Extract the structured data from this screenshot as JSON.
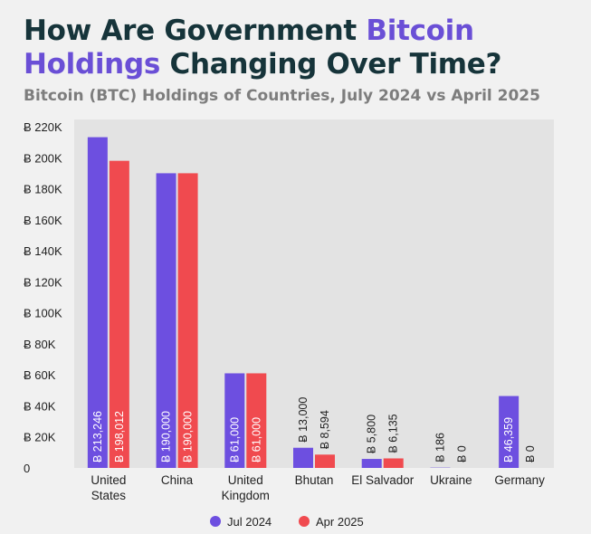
{
  "title": {
    "part1": "How Are Government ",
    "accent1": "Bitcoin",
    "accent2": "Holdings",
    "part2": " Changing Over Time?"
  },
  "subtitle": "Bitcoin (BTC) Holdings of Countries, July 2024 vs April 2025",
  "colors": {
    "jul_2024": "#6d4fe0",
    "apr_2025": "#f04a4f",
    "title": "#16343a",
    "accent": "#6a4fd6",
    "background": "#f1f1f1",
    "plot_area": "#e3e3e3"
  },
  "chart_data": {
    "type": "bar",
    "title": "How Are Government Bitcoin Holdings Changing Over Time?",
    "subtitle": "Bitcoin (BTC) Holdings of Countries, July 2024 vs April 2025",
    "categories": [
      [
        "United",
        "States"
      ],
      [
        "China"
      ],
      [
        "United",
        "Kingdom"
      ],
      [
        "Bhutan"
      ],
      [
        "El Salvador"
      ],
      [
        "Ukraine"
      ],
      [
        "Germany"
      ]
    ],
    "series": [
      {
        "name": "Jul 2024",
        "values": [
          213246,
          190000,
          61000,
          13000,
          5800,
          186,
          46359
        ],
        "labels": [
          "Ƀ 213,246",
          "Ƀ 190,000",
          "Ƀ 61,000",
          "Ƀ 13,000",
          "Ƀ 5,800",
          "Ƀ 186",
          "Ƀ 46,359"
        ]
      },
      {
        "name": "Apr 2025",
        "values": [
          198012,
          190000,
          61000,
          8594,
          6135,
          0,
          0
        ],
        "labels": [
          "Ƀ 198,012",
          "Ƀ 190,000",
          "Ƀ 61,000",
          "Ƀ 8,594",
          "Ƀ 6,135",
          "Ƀ 0",
          "Ƀ 0"
        ]
      }
    ],
    "yticks": [
      0,
      20000,
      40000,
      60000,
      80000,
      100000,
      120000,
      140000,
      160000,
      180000,
      200000,
      220000
    ],
    "ytick_labels": [
      "0",
      "Ƀ 20K",
      "Ƀ 40K",
      "Ƀ 60K",
      "Ƀ 80K",
      "Ƀ 100K",
      "Ƀ 120K",
      "Ƀ 140K",
      "Ƀ 160K",
      "Ƀ 180K",
      "Ƀ 200K",
      "Ƀ 220K"
    ],
    "ylim": [
      0,
      220000
    ],
    "xlabel": "",
    "ylabel": "",
    "grid": false,
    "legend_position": "bottom-center"
  }
}
